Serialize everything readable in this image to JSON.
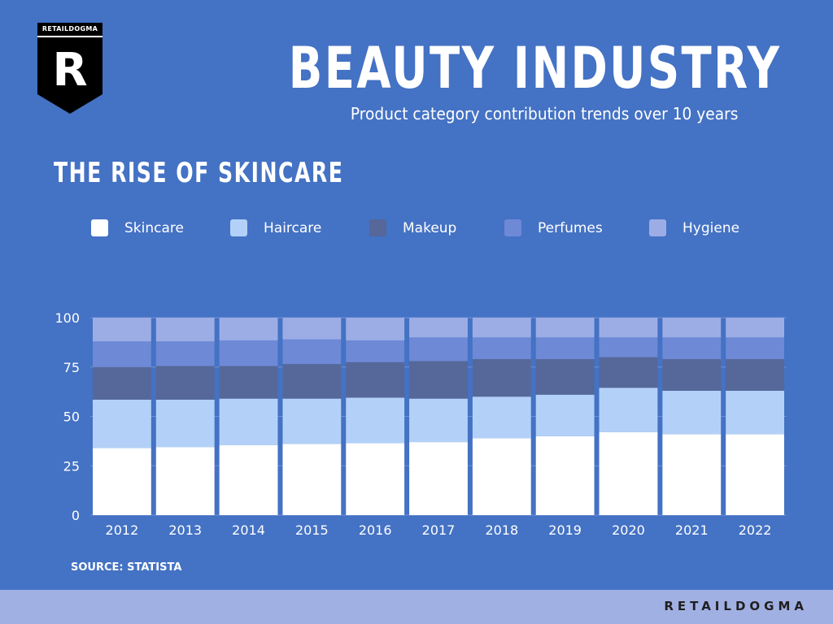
{
  "brand": {
    "logo_text": "RETAILDOGMA",
    "logo_letter": "R",
    "footer_brand": "RETAILDOGMA"
  },
  "header": {
    "title": "BEAUTY INDUSTRY",
    "subtitle": "Product category contribution trends over 10 years"
  },
  "section_title": "THE RISE OF SKINCARE",
  "source": "SOURCE: STATISTA",
  "colors": {
    "background": "#4472c4",
    "footer": "#a1b0e3",
    "skincare": "#ffffff",
    "haircare": "#b3d1f8",
    "makeup": "#566799",
    "perfumes": "#6e89d6",
    "hygiene": "#9cade6"
  },
  "chart_data": {
    "type": "bar",
    "stacked": true,
    "title": "",
    "xlabel": "",
    "ylabel": "",
    "ylim": [
      0,
      100
    ],
    "yticks": [
      0,
      25,
      50,
      75,
      100
    ],
    "grid": true,
    "legend": "top",
    "categories": [
      "2012",
      "2013",
      "2014",
      "2015",
      "2016",
      "2017",
      "2018",
      "2019",
      "2020",
      "2021",
      "2022"
    ],
    "series": [
      {
        "name": "Skincare",
        "color": "#ffffff",
        "values": [
          34,
          34.5,
          35.5,
          36,
          36.5,
          37,
          39,
          40,
          42,
          41,
          41
        ]
      },
      {
        "name": "Haircare",
        "color": "#b3d1f8",
        "values": [
          24.5,
          24,
          23.5,
          23,
          23,
          22,
          21,
          21,
          22.5,
          22,
          22
        ]
      },
      {
        "name": "Makeup",
        "color": "#566799",
        "values": [
          16.5,
          17,
          16.5,
          17.5,
          18,
          19,
          19,
          18,
          15.5,
          16,
          16
        ]
      },
      {
        "name": "Perfumes",
        "color": "#6e89d6",
        "values": [
          13,
          12.5,
          13,
          12.5,
          11,
          12,
          11,
          11,
          10,
          11,
          11
        ]
      },
      {
        "name": "Hygiene",
        "color": "#9cade6",
        "values": [
          12,
          12,
          11.5,
          11,
          11.5,
          10,
          10,
          10,
          10,
          10,
          10
        ]
      }
    ]
  }
}
